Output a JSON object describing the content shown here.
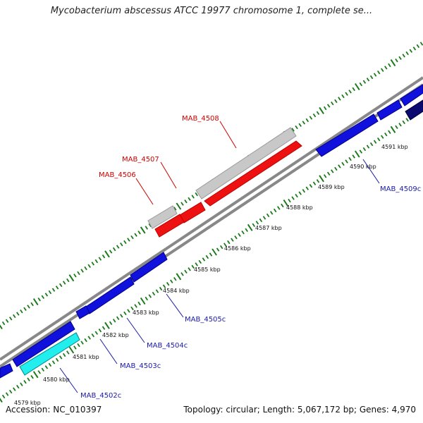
{
  "map": {
    "title": "Mycobacterium abscessus ATCC 19977 chromosome 1, complete se...",
    "accession": "Accession: NC_010397",
    "stats": "Topology: circular; Length: 5,067,172 bp; Genes: 4,970"
  },
  "colors": {
    "backbone": "#888888",
    "tick": "#1a7a1a",
    "forward_cds": "#ee1111",
    "forward_shadow": "#c8c8c8",
    "reverse_cds": "#1111dd",
    "reverse_highlight": "#22eeee",
    "reverse_dark": "#0a0a70",
    "forward_label": "#cc0000",
    "reverse_label": "#1a1aa8"
  },
  "scale": {
    "unit": "kbp",
    "labels": [
      "4579 kbp",
      "4580 kbp",
      "4581 kbp",
      "4582 kbp",
      "4583 kbp",
      "4584 kbp",
      "4585 kbp",
      "4586 kbp",
      "4587 kbp",
      "4588 kbp",
      "4589 kbp",
      "4590 kbp",
      "4591 kbp"
    ]
  },
  "genes": {
    "forward": [
      "MAB_4506",
      "MAB_4507",
      "MAB_4508"
    ],
    "reverse": [
      "MAB_4502c",
      "MAB_4503c",
      "MAB_4504c",
      "MAB_4505c",
      "MAB_4509c"
    ]
  }
}
